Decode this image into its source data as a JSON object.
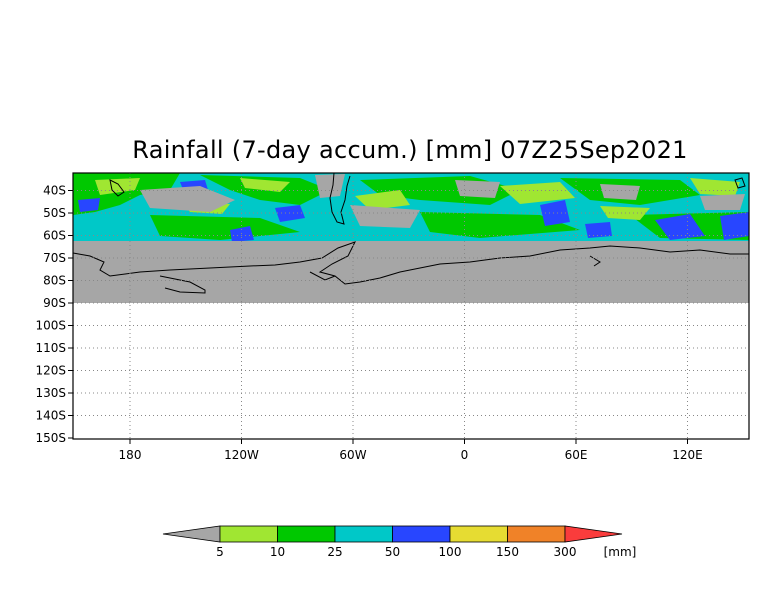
{
  "title": "Rainfall (7-day accum.) [mm] 07Z25Sep2021",
  "map": {
    "lat_labels": [
      "40S",
      "50S",
      "60S",
      "70S",
      "80S",
      "90S",
      "100S",
      "110S",
      "120S",
      "130S",
      "140S",
      "150S"
    ],
    "lon_labels": [
      "180",
      "120W",
      "60W",
      "0",
      "60E",
      "120E"
    ]
  },
  "colorbar": {
    "bin_labels": [
      "5",
      "10",
      "25",
      "50",
      "100",
      "150",
      "300"
    ],
    "unit": "[mm]",
    "colors": [
      "#a6a6a6",
      "#a0e632",
      "#00c800",
      "#00c8c8",
      "#2846ff",
      "#e6dc32",
      "#f08228",
      "#fa3c3c"
    ]
  },
  "colors": {
    "land_mask": "#a6a6a6",
    "frame": "#000000",
    "grid": "#888888"
  }
}
